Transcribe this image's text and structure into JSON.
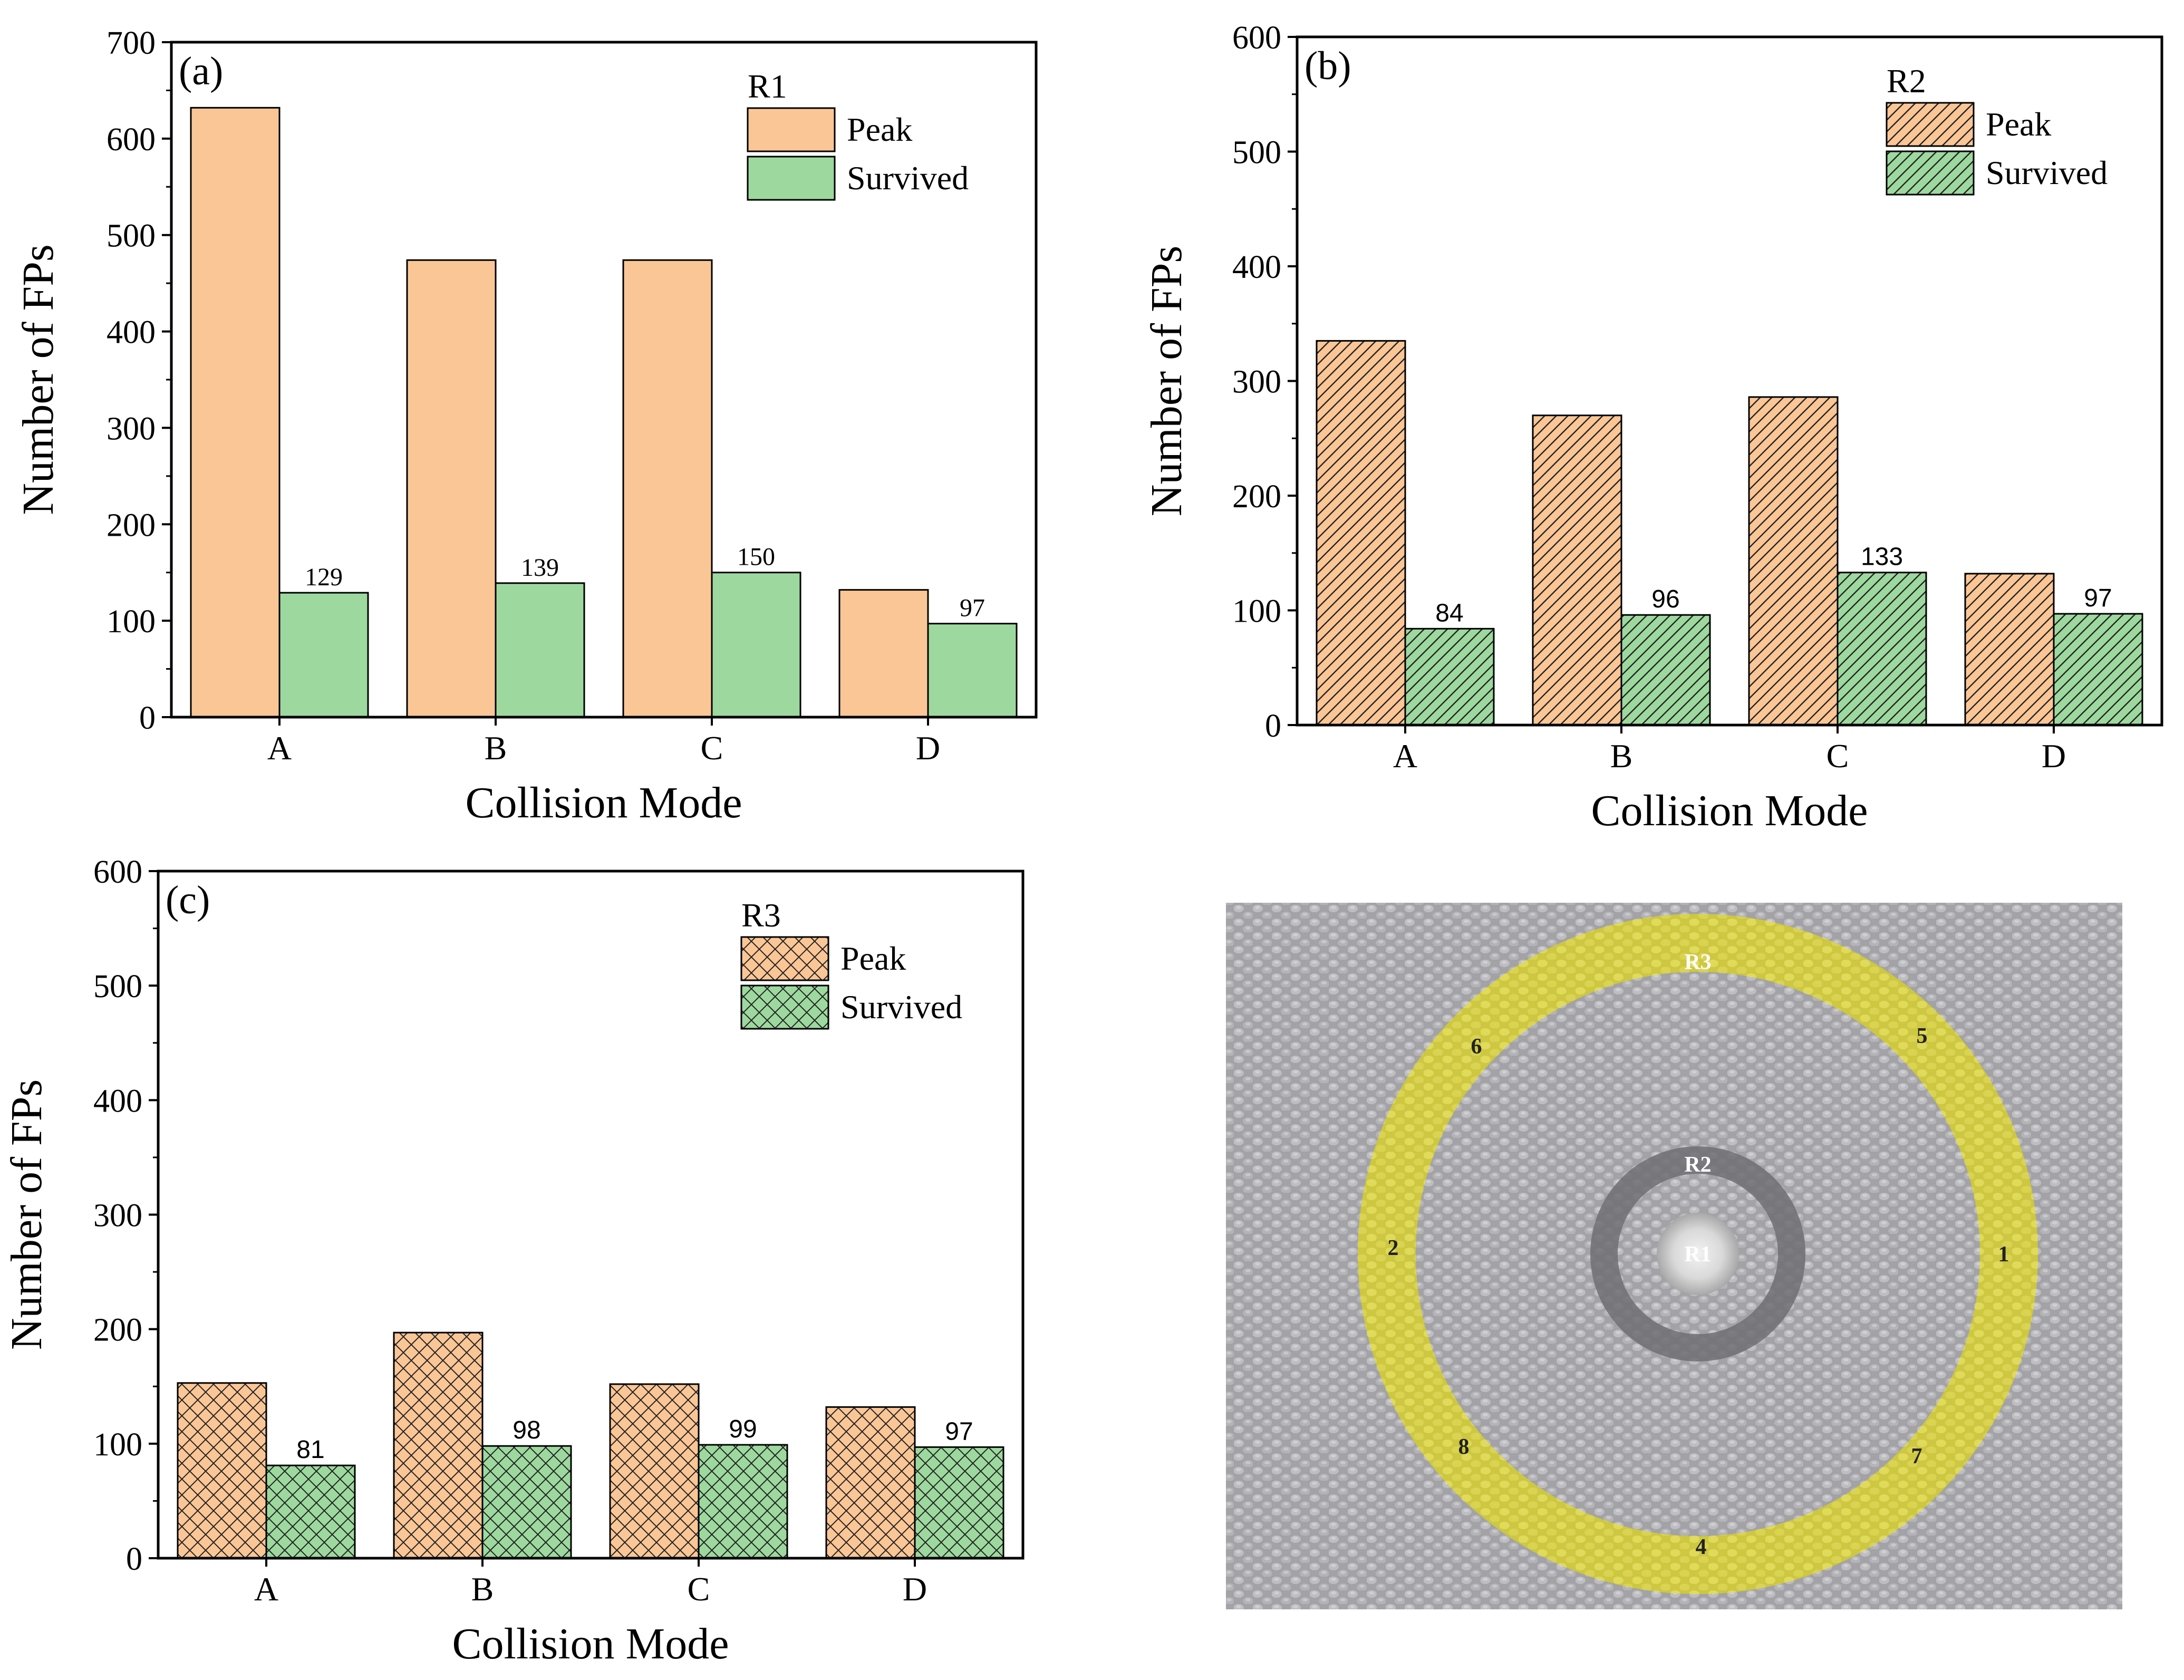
{
  "colors": {
    "peak_fill": "#fbc696",
    "survived_fill": "#9dd99e",
    "axis": "#000000",
    "ring_fill": "#ddd84a",
    "lattice_bg": "#9a9a9f"
  },
  "chart_data": [
    {
      "type": "bar",
      "panel_label": "(a)",
      "legend_title": "R1",
      "pattern": "solid",
      "categories": [
        "A",
        "B",
        "C",
        "D"
      ],
      "series": [
        {
          "name": "Peak",
          "values": [
            632,
            474,
            474,
            132
          ]
        },
        {
          "name": "Survived",
          "values": [
            129,
            139,
            150,
            97
          ]
        }
      ],
      "data_labels": [
        "129",
        "139",
        "150",
        "97"
      ],
      "xlabel": "Collision Mode",
      "ylabel": "Number of FPs",
      "ylim": [
        0,
        700
      ],
      "yticks": [
        0,
        100,
        200,
        300,
        400,
        500,
        600,
        700
      ],
      "legend_position": "top-right"
    },
    {
      "type": "bar",
      "panel_label": "(b)",
      "legend_title": "R2",
      "pattern": "diagonal-hatch",
      "categories": [
        "A",
        "B",
        "C",
        "D"
      ],
      "series": [
        {
          "name": "Peak",
          "values": [
            335,
            270,
            286,
            132
          ]
        },
        {
          "name": "Survived",
          "values": [
            84,
            96,
            133,
            97
          ]
        }
      ],
      "data_labels": [
        "84",
        "96",
        "133",
        "97"
      ],
      "xlabel": "Collision Mode",
      "ylabel": "Number of FPs",
      "ylim": [
        0,
        600
      ],
      "yticks": [
        0,
        100,
        200,
        300,
        400,
        500,
        600
      ],
      "legend_position": "top-right"
    },
    {
      "type": "bar",
      "panel_label": "(c)",
      "legend_title": "R3",
      "pattern": "cross-hatch",
      "categories": [
        "A",
        "B",
        "C",
        "D"
      ],
      "series": [
        {
          "name": "Peak",
          "values": [
            153,
            197,
            152,
            132
          ]
        },
        {
          "name": "Survived",
          "values": [
            81,
            98,
            99,
            97
          ]
        }
      ],
      "data_labels": [
        "81",
        "98",
        "99",
        "97"
      ],
      "xlabel": "Collision Mode",
      "ylabel": "Number of FPs",
      "ylim": [
        0,
        600
      ],
      "yticks": [
        0,
        100,
        200,
        300,
        400,
        500,
        600
      ],
      "legend_position": "top-right"
    }
  ],
  "schematic": {
    "region_labels": [
      "R3",
      "R2",
      "R1"
    ],
    "site_labels": [
      "1",
      "2",
      "4",
      "5",
      "6",
      "7",
      "8"
    ]
  }
}
